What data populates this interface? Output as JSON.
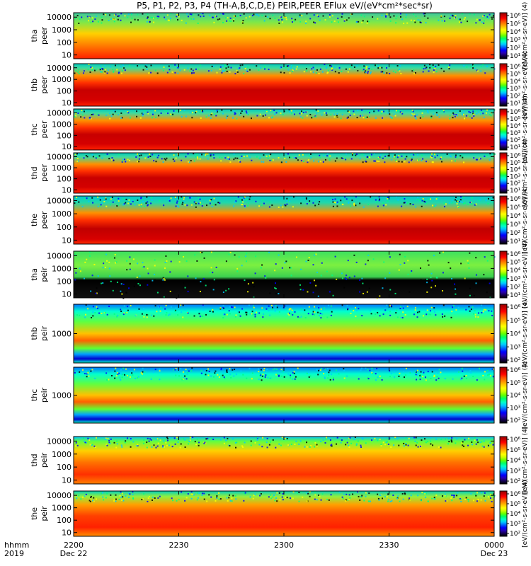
{
  "title": "P5, P1, P2, P3, P4 (TH-A,B,C,D,E) PEIR,PEER EFlux eV/(eV*cm²*sec*sr)",
  "colorbar_colors": [
    "#000000",
    "#140050",
    "#2800b4",
    "#0000ff",
    "#0064ff",
    "#00c8ff",
    "#00ffc8",
    "#00ff64",
    "#64ff00",
    "#c8ff00",
    "#ffff00",
    "#ffc800",
    "#ff8c00",
    "#ff5000",
    "#ff0000",
    "#c80000",
    "#960000"
  ],
  "chart_data": {
    "type": "heatmap",
    "x_axis": {
      "tick_labels": [
        "2200",
        "2230",
        "2300",
        "2330",
        "0000"
      ],
      "tick_values_min": [
        0,
        30,
        60,
        90,
        120
      ],
      "date_labels": [
        {
          "at": 0,
          "text": "Dec 22"
        },
        {
          "at": 120,
          "text": "Dec 23"
        }
      ],
      "row_labels": [
        "hhmm",
        "2019"
      ],
      "range_min": [
        0,
        120
      ]
    },
    "colorbar": {
      "label": "[eV/(cm²-s-sr-eV)] (4)",
      "ticks": [
        "10⁶",
        "10⁵",
        "10⁴",
        "10³",
        "10²",
        "10¹"
      ],
      "scale": "log"
    },
    "panels": [
      {
        "name": "tha peer",
        "ylabel": [
          "tha",
          "peer"
        ],
        "yticks": [
          "10000",
          "1000",
          "100",
          "10"
        ],
        "yrange_log": [
          0.7,
          4.35
        ],
        "cb_ticks": [
          "10⁶",
          "10⁵",
          "10⁴",
          "10³",
          "10²",
          "10¹"
        ]
      },
      {
        "name": "thb peer",
        "ylabel": [
          "thb",
          "peer"
        ],
        "yticks": [
          "10000",
          "1000",
          "100",
          "10"
        ],
        "yrange_log": [
          0.7,
          4.35
        ],
        "cb_ticks": [
          "10⁶",
          "10⁵",
          "10⁴",
          "10³",
          "10²",
          "10¹"
        ]
      },
      {
        "name": "thc peer",
        "ylabel": [
          "thc",
          "peer"
        ],
        "yticks": [
          "10000",
          "1000",
          "100",
          "10"
        ],
        "yrange_log": [
          0.7,
          4.35
        ],
        "cb_ticks": [
          "10⁶",
          "10⁵",
          "10⁴",
          "10³",
          "10²",
          "10¹"
        ]
      },
      {
        "name": "thd peer",
        "ylabel": [
          "thd",
          "peer"
        ],
        "yticks": [
          "10000",
          "1000",
          "100",
          "10"
        ],
        "yrange_log": [
          0.7,
          4.35
        ],
        "cb_ticks": [
          "10⁶",
          "10⁵",
          "10⁴",
          "10³",
          "10²",
          "10¹"
        ]
      },
      {
        "name": "the peer",
        "ylabel": [
          "the",
          "peer"
        ],
        "yticks": [
          "10000",
          "1000",
          "100",
          "10"
        ],
        "yrange_log": [
          0.7,
          4.35
        ],
        "cb_ticks": [
          "10⁶",
          "10⁵",
          "10⁴",
          "10³",
          "10²",
          "10¹"
        ]
      },
      {
        "name": "tha peir",
        "ylabel": [
          "tha",
          "peir"
        ],
        "yticks": [
          "10000",
          "1000",
          "100",
          "10"
        ],
        "yrange_log": [
          0.7,
          4.35
        ],
        "cb_ticks": [
          "10⁶",
          "10⁵",
          "10⁴",
          "10³",
          "10²",
          "10¹"
        ]
      },
      {
        "name": "thb peir",
        "ylabel": [
          "thb",
          "peir"
        ],
        "yticks": [
          "1000"
        ],
        "yrange_log": [
          2.0,
          4.0
        ],
        "cb_ticks": [
          "10⁶",
          "10⁵",
          "10⁴",
          "10³",
          "10²"
        ]
      },
      {
        "name": "thc peir",
        "ylabel": [
          "thc",
          "peir"
        ],
        "yticks": [
          "1000"
        ],
        "yrange_log": [
          2.0,
          4.0
        ],
        "cb_ticks": [
          "10⁶",
          "10⁵",
          "10⁴",
          "10³",
          "10²"
        ]
      },
      {
        "name": "thd peir",
        "ylabel": [
          "thd",
          "peir"
        ],
        "yticks": [
          "10000",
          "1000",
          "100",
          "10"
        ],
        "yrange_log": [
          0.7,
          4.35
        ],
        "cb_ticks": [
          "10⁶",
          "10⁵",
          "10⁴",
          "10³",
          "10²"
        ]
      },
      {
        "name": "the peir",
        "ylabel": [
          "the",
          "peir"
        ],
        "yticks": [
          "10000",
          "1000",
          "100",
          "10"
        ],
        "yrange_log": [
          0.7,
          4.35
        ],
        "cb_ticks": [
          "10⁶",
          "10⁵",
          "10⁴",
          "10³",
          "10²"
        ]
      }
    ]
  }
}
